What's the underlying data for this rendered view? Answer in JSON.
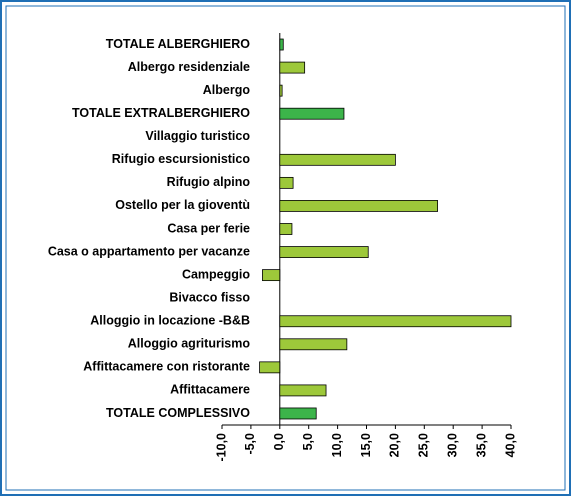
{
  "chart_data": {
    "type": "barh",
    "categories": [
      "TOTALE ALBERGHIERO",
      "Albergo residenziale",
      "Albergo",
      "TOTALE EXTRALBERGHIERO",
      "Villaggio turistico",
      "Rifugio escursionistico",
      "Rifugio alpino",
      "Ostello per la gioventù",
      "Casa per ferie",
      "Casa o appartamento per vacanze",
      "Campeggio",
      "Bivacco fisso",
      "Alloggio in locazione -B&B",
      "Alloggio agriturismo",
      "Affittacamere con ristorante",
      "Affittacamere",
      "TOTALE COMPLESSIVO"
    ],
    "values": [
      0.6,
      4.3,
      0.4,
      11.1,
      0,
      20.0,
      2.3,
      27.3,
      2.1,
      15.3,
      -3.0,
      0,
      40.0,
      11.6,
      -3.5,
      8.0,
      6.3
    ],
    "colors": [
      "#3cb44a",
      "#9dc83a",
      "#9dc83a",
      "#3cb44a",
      "#9dc83a",
      "#9dc83a",
      "#9dc83a",
      "#9dc83a",
      "#9dc83a",
      "#9dc83a",
      "#9dc83a",
      "#9dc83a",
      "#9dc83a",
      "#9dc83a",
      "#9dc83a",
      "#9dc83a",
      "#3cb44a"
    ],
    "xlim": [
      -10,
      40
    ],
    "xticks": [
      {
        "value": -10,
        "label": "-10,0"
      },
      {
        "value": -5,
        "label": "-5,0"
      },
      {
        "value": 0,
        "label": "0,0"
      },
      {
        "value": 5,
        "label": "5,0"
      },
      {
        "value": 10,
        "label": "10,0"
      },
      {
        "value": 15,
        "label": "15,0"
      },
      {
        "value": 20,
        "label": "20,0"
      },
      {
        "value": 25,
        "label": "25,0"
      },
      {
        "value": 30,
        "label": "30,0"
      },
      {
        "value": 35,
        "label": "35,0"
      },
      {
        "value": 40,
        "label": "40,0"
      }
    ]
  }
}
